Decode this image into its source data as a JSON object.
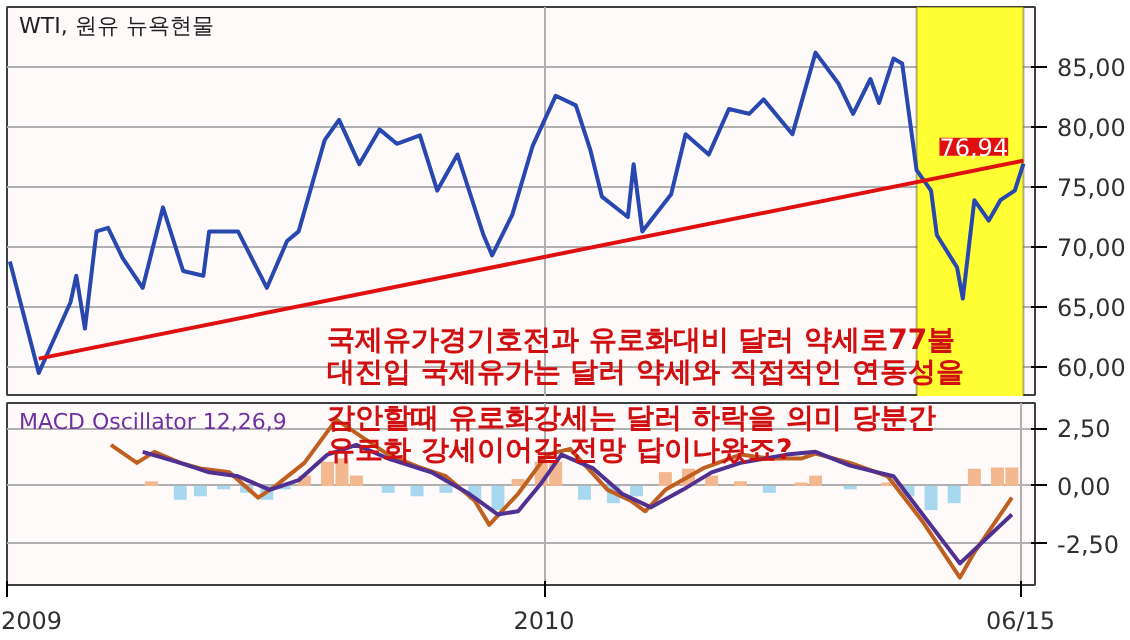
{
  "chart_data": [
    {
      "type": "line",
      "title": "WTI, 원유 뉴욕현물",
      "xlim": [
        "2009-06-29",
        "2010-06-20"
      ],
      "ylim": [
        57.5,
        90
      ],
      "xticks": [
        {
          "value": "2009-06-29",
          "label": null
        },
        {
          "value": "2010-01-01",
          "label": null
        },
        {
          "value": "2010-06-15",
          "label": null
        }
      ],
      "yticks": [
        {
          "value": 60,
          "label": "60,00"
        },
        {
          "value": 65,
          "label": "65,00"
        },
        {
          "value": 70,
          "label": "70,00"
        },
        {
          "value": 75,
          "label": "75,00"
        },
        {
          "value": 80,
          "label": "80,00"
        },
        {
          "value": 85,
          "label": "85,00"
        }
      ],
      "tick_labels": "y",
      "grid": true,
      "series": [
        {
          "color": "#2848b0",
          "x": [
            "2009-06-30",
            "2009-07-10",
            "2009-07-21",
            "2009-07-23",
            "2009-07-26",
            "2009-07-30",
            "2009-08-03",
            "2009-08-08",
            "2009-08-15",
            "2009-08-22",
            "2009-08-29",
            "2009-09-05",
            "2009-09-07",
            "2009-09-17",
            "2009-09-27",
            "2009-10-04",
            "2009-10-08",
            "2009-10-17",
            "2009-10-22",
            "2009-10-29",
            "2009-11-05",
            "2009-11-11",
            "2009-11-19",
            "2009-11-25",
            "2009-12-02",
            "2009-12-11",
            "2009-12-14",
            "2009-12-21",
            "2009-12-28",
            "2010-01-05",
            "2010-01-12",
            "2010-01-17",
            "2010-01-21",
            "2010-01-30",
            "2010-02-01",
            "2010-02-04",
            "2010-02-14",
            "2010-02-19",
            "2010-02-27",
            "2010-03-06",
            "2010-03-13",
            "2010-03-18",
            "2010-03-28",
            "2010-04-05",
            "2010-04-13",
            "2010-04-18",
            "2010-04-24",
            "2010-04-27",
            "2010-05-02",
            "2010-05-05",
            "2010-05-10",
            "2010-05-15",
            "2010-05-17",
            "2010-05-24",
            "2010-05-26",
            "2010-05-30",
            "2010-06-04",
            "2010-06-08",
            "2010-06-13",
            "2010-06-16"
          ],
          "values": [
            68.8,
            59.5,
            65.4,
            67.6,
            63.2,
            71.3,
            71.6,
            69.1,
            66.6,
            73.3,
            68,
            67.6,
            71.3,
            71.3,
            66.6,
            70.5,
            71.3,
            78.9,
            80.6,
            76.9,
            79.8,
            78.6,
            79.3,
            74.7,
            77.7,
            71,
            69.3,
            72.7,
            78.4,
            82.6,
            81.8,
            78.1,
            74.2,
            72.5,
            76.9,
            71.3,
            74.4,
            79.4,
            77.7,
            81.5,
            81.1,
            82.3,
            79.4,
            86.2,
            83.6,
            81.1,
            84,
            82,
            85.7,
            85.3,
            76.4,
            74.7,
            71,
            68.3,
            65.7,
            73.9,
            72.2,
            73.9,
            74.7,
            76.94
          ]
        },
        {
          "color": "#e01010",
          "x": [
            "2009-07-10",
            "2010-06-16"
          ],
          "values": [
            60.7,
            77.2
          ]
        }
      ],
      "bands": [
        {
          "axis": "x",
          "from": "2010-05-10",
          "to": "2010-06-16",
          "color": "#ffff33"
        }
      ],
      "annotations": [
        {
          "text": "76,94",
          "x": "2010-06-16",
          "y": 76.94
        },
        "국제유가경기호전과 유로화대비 달러 약세로77불",
        "대진입 국제유가는 달러 약세와 직접적인 연동성을",
        "감안할때 유로화강세는 달러 하락을 의미 당분간",
        "유로화 강세이어갈 전망 답이나왔죠?"
      ]
    },
    {
      "type": "bar",
      "title": "MACD Oscillator 12,26,9",
      "xlim": [
        "2009-06-29",
        "2010-06-20"
      ],
      "ylim": [
        -4.3,
        3.6
      ],
      "xticks": [
        {
          "value": "2009-06-29",
          "label": "2009"
        },
        {
          "value": "2010-01-01",
          "label": "2010"
        },
        {
          "value": "2010-06-15",
          "label": "06/15"
        }
      ],
      "yticks": [
        {
          "value": -2.5,
          "label": "-2,50"
        },
        {
          "value": 0,
          "label": "0,00"
        },
        {
          "value": 2.5,
          "label": "2,50"
        }
      ],
      "grid": true,
      "series": [
        {
          "x": [
            "2009-08-18",
            "2009-08-28",
            "2009-09-04",
            "2009-09-12",
            "2009-09-20",
            "2009-09-27",
            "2009-10-03",
            "2009-10-10",
            "2009-10-18",
            "2009-10-23",
            "2009-10-28",
            "2009-11-08",
            "2009-11-18",
            "2009-11-28",
            "2009-12-08",
            "2009-12-16",
            "2009-12-23",
            "2009-12-31",
            "2010-01-05",
            "2010-01-15",
            "2010-01-25",
            "2010-02-02",
            "2010-02-12",
            "2010-02-20",
            "2010-02-28",
            "2010-03-10",
            "2010-03-20",
            "2010-03-31",
            "2010-04-05",
            "2010-04-17",
            "2010-04-30",
            "2010-05-07",
            "2010-05-15",
            "2010-05-23",
            "2010-05-30",
            "2010-06-07",
            "2010-06-12"
          ],
          "values": [
            0.2,
            -0.6,
            -0.45,
            -0.15,
            -0.3,
            -0.6,
            -0.15,
            0.45,
            1.05,
            1.2,
            0.45,
            -0.3,
            -0.45,
            -0.3,
            -0.6,
            -1.05,
            0.3,
            1.05,
            1.05,
            -0.6,
            -0.75,
            -0.45,
            0.6,
            0.75,
            0.45,
            0.2,
            -0.3,
            0.15,
            0.45,
            -0.15,
            0.15,
            -0.45,
            -1.05,
            -0.75,
            0.75,
            0.8,
            0.8
          ],
          "colors": [
            "#f4b890",
            "#a8d8f0",
            "#a8d8f0",
            "#a8d8f0",
            "#a8d8f0",
            "#a8d8f0",
            "#a8d8f0",
            "#f4b890",
            "#f4b890",
            "#f4b890",
            "#f4b890",
            "#a8d8f0",
            "#a8d8f0",
            "#a8d8f0",
            "#a8d8f0",
            "#a8d8f0",
            "#f4b890",
            "#f4b890",
            "#f4b890",
            "#a8d8f0",
            "#a8d8f0",
            "#a8d8f0",
            "#f4b890",
            "#f4b890",
            "#f4b890",
            "#f4b890",
            "#a8d8f0",
            "#f4b890",
            "#f4b890",
            "#a8d8f0",
            "#f4b890",
            "#a8d8f0",
            "#a8d8f0",
            "#a8d8f0",
            "#f4b890",
            "#f4b890",
            "#f4b890"
          ]
        },
        {
          "type": "line",
          "color": "#c06020",
          "x": [
            "2009-08-04",
            "2009-08-13",
            "2009-08-19",
            "2009-08-28",
            "2009-09-04",
            "2009-09-14",
            "2009-09-24",
            "2009-09-30",
            "2009-10-10",
            "2009-10-21",
            "2009-11-08",
            "2009-11-18",
            "2009-11-28",
            "2009-12-08",
            "2009-12-13",
            "2009-12-23",
            "2010-01-02",
            "2010-01-10",
            "2010-01-23",
            "2010-01-31",
            "2010-02-05",
            "2010-02-12",
            "2010-02-25",
            "2010-03-10",
            "2010-03-20",
            "2010-03-31",
            "2010-04-05",
            "2010-04-17",
            "2010-04-30",
            "2010-05-12",
            "2010-05-25",
            "2010-05-30",
            "2010-06-12"
          ],
          "values": [
            1.78,
            1.0,
            1.48,
            1.0,
            0.76,
            0.59,
            -0.51,
            0,
            1.0,
            2.88,
            1.36,
            0.85,
            0.42,
            -0.64,
            -1.69,
            -0.34,
            1.36,
            1.61,
            -0.17,
            -0.64,
            -1.1,
            -0.17,
            0.76,
            1.36,
            1.19,
            1.19,
            1.4,
            1.0,
            0.42,
            -1.53,
            -3.98,
            -2.88,
            -0.51
          ]
        },
        {
          "type": "line",
          "color": "#503090",
          "x": [
            "2009-08-15",
            "2009-08-28",
            "2009-09-07",
            "2009-09-17",
            "2009-09-28",
            "2009-10-08",
            "2009-10-18",
            "2009-10-28",
            "2009-11-08",
            "2009-11-23",
            "2009-12-06",
            "2009-12-16",
            "2009-12-23",
            "2009-12-31",
            "2010-01-07",
            "2010-01-18",
            "2010-01-28",
            "2010-02-07",
            "2010-02-18",
            "2010-02-28",
            "2010-03-10",
            "2010-03-26",
            "2010-04-05",
            "2010-04-17",
            "2010-05-02",
            "2010-05-25",
            "2010-06-12"
          ],
          "values": [
            1.48,
            1.0,
            0.59,
            0.42,
            -0.17,
            0.25,
            1.36,
            1.78,
            1.19,
            0.59,
            -0.34,
            -1.24,
            -1.1,
            0.12,
            1.36,
            0.76,
            -0.34,
            -0.93,
            -0.17,
            0.59,
            1.0,
            1.36,
            1.48,
            0.88,
            0.42,
            -3.36,
            -1.24
          ]
        }
      ]
    }
  ]
}
